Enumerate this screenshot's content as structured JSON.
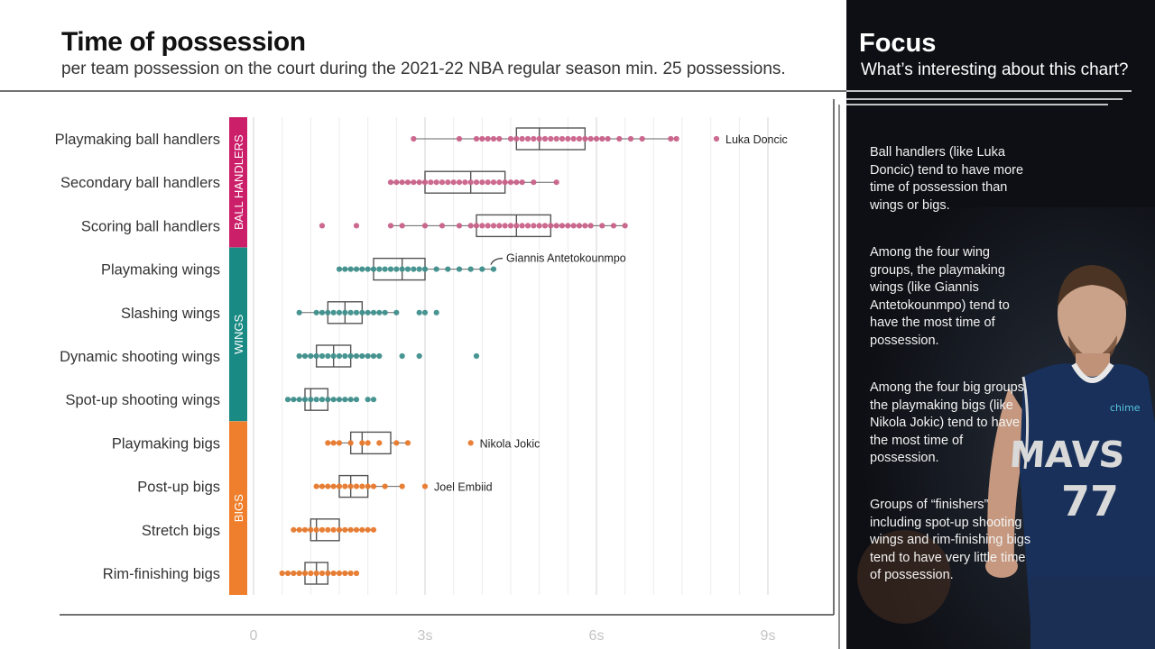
{
  "header": {
    "title": "Time of possession",
    "subtitle": "per team possession on the court during the 2021-22 NBA regular season min. 25 possessions."
  },
  "focus": {
    "title": "Focus",
    "subtitle": "What’s interesting about this chart?",
    "paragraphs": [
      "Ball handlers (like Luka Doncic) tend to have more time of possession than wings or bigs.",
      "Among the four wing groups, the playmaking wings (like Giannis Antetokounmpo) tend to have the most time of possession.",
      "Among the four big groups, the playmaking bigs (like Nikola Jokic) tend to have the most time of possession.",
      "Groups of “finishers” including spot-up shooting wings and rim-finishing bigs tend to have very little time of possession."
    ],
    "player": {
      "jersey_text": "MAVS",
      "number": "77",
      "sponsor": "chime"
    }
  },
  "chart_data": {
    "type": "boxplot",
    "title": "Time of possession",
    "subtitle": "per team possession on the court during the 2021-22 NBA regular season min. 25 possessions.",
    "xlim": [
      -0.3,
      10
    ],
    "xticks": [
      0,
      3,
      6,
      9
    ],
    "xtick_labels": [
      "0",
      "3s",
      "6s",
      "9s"
    ],
    "grid": true,
    "groups": [
      {
        "name": "BALL HANDLERS",
        "color": "#cc1f6a",
        "dot_color": "#c9628a"
      },
      {
        "name": "WINGS",
        "color": "#1a8a84",
        "dot_color": "#3e8f8c"
      },
      {
        "name": "BIGS",
        "color": "#ef7f2c",
        "dot_color": "#e8792c"
      }
    ],
    "categories": [
      {
        "label": "Playmaking ball handlers",
        "group": 0,
        "box": [
          2.8,
          4.6,
          5.0,
          5.8,
          7.4
        ],
        "points": [
          2.8,
          3.6,
          3.9,
          4.0,
          4.1,
          4.2,
          4.3,
          4.5,
          4.6,
          4.7,
          4.8,
          4.9,
          5.0,
          5.1,
          5.2,
          5.3,
          5.4,
          5.5,
          5.6,
          5.7,
          5.8,
          5.9,
          6.0,
          6.1,
          6.2,
          6.4,
          6.6,
          6.8,
          7.3,
          7.4,
          8.1
        ],
        "annotation": {
          "text": "Luka Doncic",
          "x": 8.1
        }
      },
      {
        "label": "Secondary ball handlers",
        "group": 0,
        "box": [
          2.4,
          3.0,
          3.8,
          4.4,
          5.3
        ],
        "points": [
          2.4,
          2.5,
          2.6,
          2.7,
          2.8,
          2.9,
          3.0,
          3.1,
          3.2,
          3.3,
          3.4,
          3.5,
          3.6,
          3.7,
          3.8,
          3.9,
          4.0,
          4.1,
          4.2,
          4.3,
          4.4,
          4.5,
          4.6,
          4.7,
          4.9,
          5.3
        ]
      },
      {
        "label": "Scoring ball handlers",
        "group": 0,
        "box": [
          2.4,
          3.9,
          4.6,
          5.2,
          6.5
        ],
        "points": [
          1.2,
          1.8,
          2.4,
          2.6,
          3.0,
          3.3,
          3.6,
          3.8,
          3.9,
          4.0,
          4.1,
          4.2,
          4.3,
          4.4,
          4.5,
          4.6,
          4.7,
          4.8,
          4.9,
          5.0,
          5.1,
          5.2,
          5.3,
          5.4,
          5.5,
          5.6,
          5.7,
          5.8,
          5.9,
          6.1,
          6.3,
          6.5
        ]
      },
      {
        "label": "Playmaking wings",
        "group": 1,
        "box": [
          1.5,
          2.1,
          2.6,
          3.0,
          4.2
        ],
        "points": [
          1.5,
          1.6,
          1.7,
          1.8,
          1.9,
          2.0,
          2.1,
          2.2,
          2.3,
          2.4,
          2.5,
          2.6,
          2.7,
          2.8,
          2.9,
          3.0,
          3.2,
          3.4,
          3.6,
          3.8,
          4.0,
          4.2
        ],
        "annotation": {
          "text": "Giannis Antetokounmpo",
          "x": 4.2
        }
      },
      {
        "label": "Slashing wings",
        "group": 1,
        "box": [
          0.8,
          1.3,
          1.6,
          1.9,
          2.5
        ],
        "points": [
          0.8,
          1.1,
          1.2,
          1.3,
          1.4,
          1.5,
          1.6,
          1.7,
          1.8,
          1.9,
          2.0,
          2.1,
          2.2,
          2.3,
          2.5,
          2.9,
          3.0,
          3.2
        ]
      },
      {
        "label": "Dynamic shooting wings",
        "group": 1,
        "box": [
          0.8,
          1.1,
          1.4,
          1.7,
          2.2
        ],
        "points": [
          0.8,
          0.9,
          1.0,
          1.1,
          1.2,
          1.3,
          1.4,
          1.5,
          1.6,
          1.7,
          1.8,
          1.9,
          2.0,
          2.1,
          2.2,
          2.6,
          2.9,
          3.9
        ]
      },
      {
        "label": "Spot-up shooting wings",
        "group": 1,
        "box": [
          0.6,
          0.9,
          1.0,
          1.3,
          1.8
        ],
        "points": [
          0.6,
          0.7,
          0.8,
          0.9,
          1.0,
          1.1,
          1.2,
          1.3,
          1.4,
          1.5,
          1.6,
          1.7,
          1.8,
          2.0,
          2.1
        ]
      },
      {
        "label": "Playmaking bigs",
        "group": 2,
        "box": [
          1.3,
          1.7,
          1.9,
          2.4,
          2.7
        ],
        "points": [
          1.3,
          1.4,
          1.5,
          1.7,
          1.9,
          2.0,
          2.2,
          2.5,
          2.7,
          3.8
        ],
        "annotation": {
          "text": "Nikola Jokic",
          "x": 3.8
        }
      },
      {
        "label": "Post-up bigs",
        "group": 2,
        "box": [
          1.1,
          1.5,
          1.7,
          2.0,
          2.6
        ],
        "points": [
          1.1,
          1.2,
          1.3,
          1.4,
          1.5,
          1.6,
          1.7,
          1.8,
          1.9,
          2.0,
          2.1,
          2.3,
          2.6,
          3.0
        ],
        "annotation": {
          "text": "Joel Embiid",
          "x": 3.0
        }
      },
      {
        "label": "Stretch bigs",
        "group": 2,
        "box": [
          0.7,
          1.0,
          1.1,
          1.5,
          2.1
        ],
        "points": [
          0.7,
          0.8,
          0.9,
          1.0,
          1.1,
          1.2,
          1.3,
          1.4,
          1.5,
          1.6,
          1.7,
          1.8,
          1.9,
          2.0,
          2.1
        ]
      },
      {
        "label": "Rim-finishing bigs",
        "group": 2,
        "box": [
          0.5,
          0.9,
          1.1,
          1.3,
          1.7
        ],
        "points": [
          0.5,
          0.6,
          0.7,
          0.8,
          0.9,
          1.0,
          1.1,
          1.2,
          1.3,
          1.4,
          1.5,
          1.6,
          1.7,
          1.8
        ]
      }
    ]
  }
}
